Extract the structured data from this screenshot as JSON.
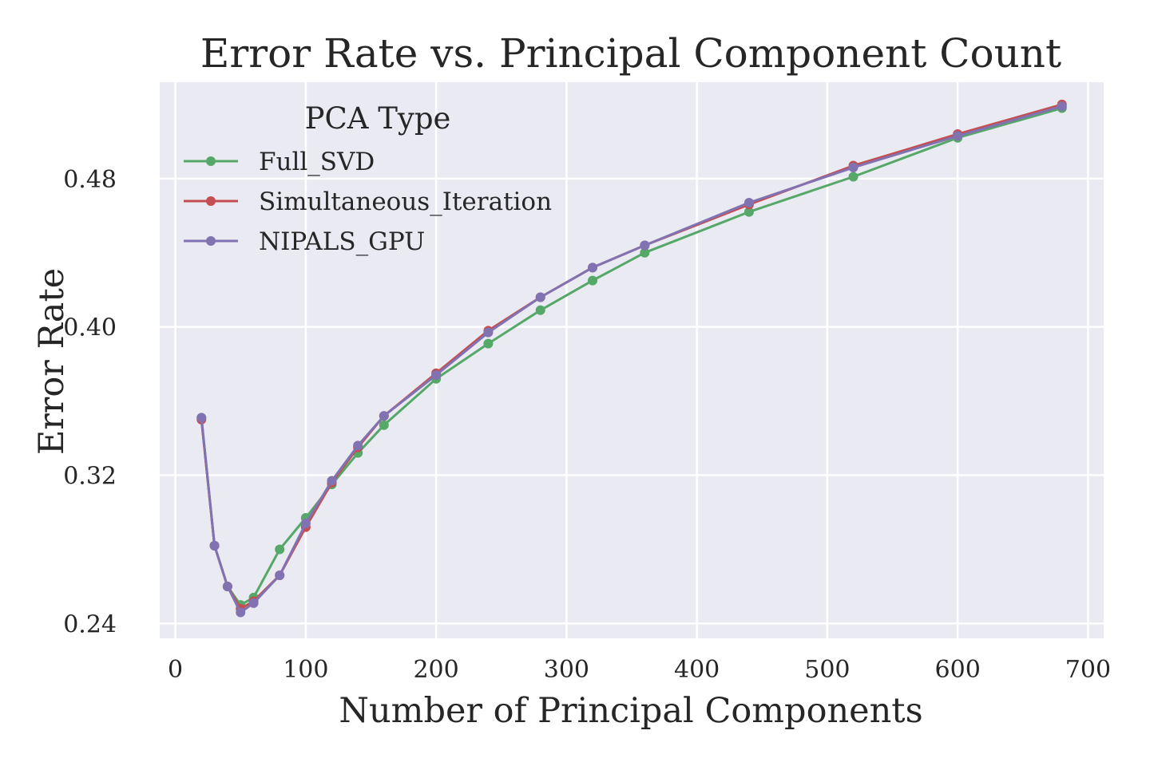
{
  "chart_data": {
    "type": "line",
    "title": "Error Rate vs. Principal Component Count",
    "xlabel": "Number of Principal Components",
    "ylabel": "Error Rate",
    "xlim": [
      -12,
      712
    ],
    "ylim": [
      0.232,
      0.532
    ],
    "xticks": [
      0,
      100,
      200,
      300,
      400,
      500,
      600,
      700
    ],
    "xtick_labels": [
      "0",
      "100",
      "200",
      "300",
      "400",
      "500",
      "600",
      "700"
    ],
    "yticks": [
      0.24,
      0.32,
      0.4,
      0.48
    ],
    "ytick_labels": [
      "0.24",
      "0.32",
      "0.40",
      "0.48"
    ],
    "grid": true,
    "legend": {
      "title": "PCA Type",
      "placement": "top-left"
    },
    "x": [
      20,
      30,
      40,
      50,
      60,
      80,
      100,
      120,
      140,
      160,
      200,
      240,
      280,
      320,
      360,
      440,
      520,
      600,
      680
    ],
    "series": [
      {
        "name": "Full_SVD",
        "color": "#55a868",
        "values": [
          0.351,
          0.282,
          0.26,
          0.25,
          0.254,
          0.28,
          0.297,
          0.315,
          0.332,
          0.347,
          0.372,
          0.391,
          0.409,
          0.425,
          0.44,
          0.462,
          0.481,
          0.502,
          0.518
        ]
      },
      {
        "name": "Simultaneous_Iteration",
        "color": "#c44e52",
        "values": [
          0.35,
          0.282,
          0.26,
          0.248,
          0.252,
          0.266,
          0.292,
          0.316,
          0.335,
          0.352,
          0.375,
          0.398,
          0.416,
          0.432,
          0.444,
          0.466,
          0.487,
          0.504,
          0.52
        ]
      },
      {
        "name": "NIPALS_GPU",
        "color": "#8172b2",
        "values": [
          0.351,
          0.282,
          0.26,
          0.246,
          0.251,
          0.266,
          0.294,
          0.317,
          0.336,
          0.352,
          0.374,
          0.397,
          0.416,
          0.432,
          0.444,
          0.467,
          0.486,
          0.503,
          0.519
        ]
      }
    ]
  }
}
